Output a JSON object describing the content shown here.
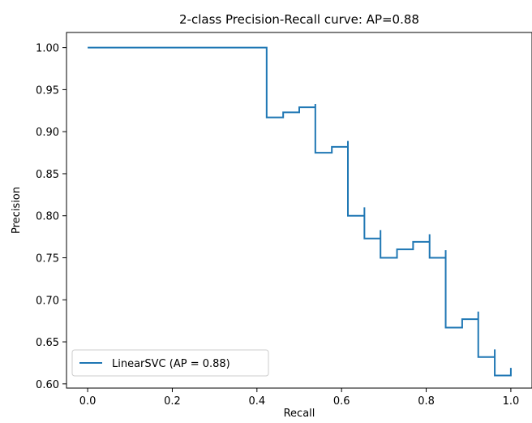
{
  "chart_data": {
    "type": "line",
    "title": "2-class Precision-Recall curve: AP=0.88",
    "xlabel": "Recall",
    "ylabel": "Precision",
    "xlim": [
      -0.05,
      1.05
    ],
    "ylim": [
      0.595,
      1.018
    ],
    "xticks": [
      0.0,
      0.2,
      0.4,
      0.6,
      0.8,
      1.0
    ],
    "xtick_labels": [
      "0.0",
      "0.2",
      "0.4",
      "0.6",
      "0.8",
      "1.0"
    ],
    "yticks": [
      0.6,
      0.65,
      0.7,
      0.75,
      0.8,
      0.85,
      0.9,
      0.95,
      1.0
    ],
    "ytick_labels": [
      "0.60",
      "0.65",
      "0.70",
      "0.75",
      "0.80",
      "0.85",
      "0.90",
      "0.95",
      "1.00"
    ],
    "grid": false,
    "legend_position": "lower-left",
    "drawstyle": "steps-post",
    "series": [
      {
        "name": "LinearSVC (AP = 0.88)",
        "color": "#1f77b4",
        "x": [
          0.0,
          0.423,
          0.423,
          0.462,
          0.5,
          0.538,
          0.538,
          0.577,
          0.615,
          0.615,
          0.654,
          0.654,
          0.692,
          0.692,
          0.731,
          0.769,
          0.808,
          0.808,
          0.846,
          0.846,
          0.885,
          0.923,
          0.923,
          0.962,
          0.962,
          1.0
        ],
        "y": [
          1.0,
          1.0,
          0.917,
          0.923,
          0.929,
          0.933,
          0.875,
          0.882,
          0.889,
          0.8,
          0.81,
          0.773,
          0.783,
          0.75,
          0.76,
          0.769,
          0.778,
          0.75,
          0.759,
          0.667,
          0.677,
          0.686,
          0.632,
          0.641,
          0.61,
          0.619
        ]
      }
    ]
  }
}
